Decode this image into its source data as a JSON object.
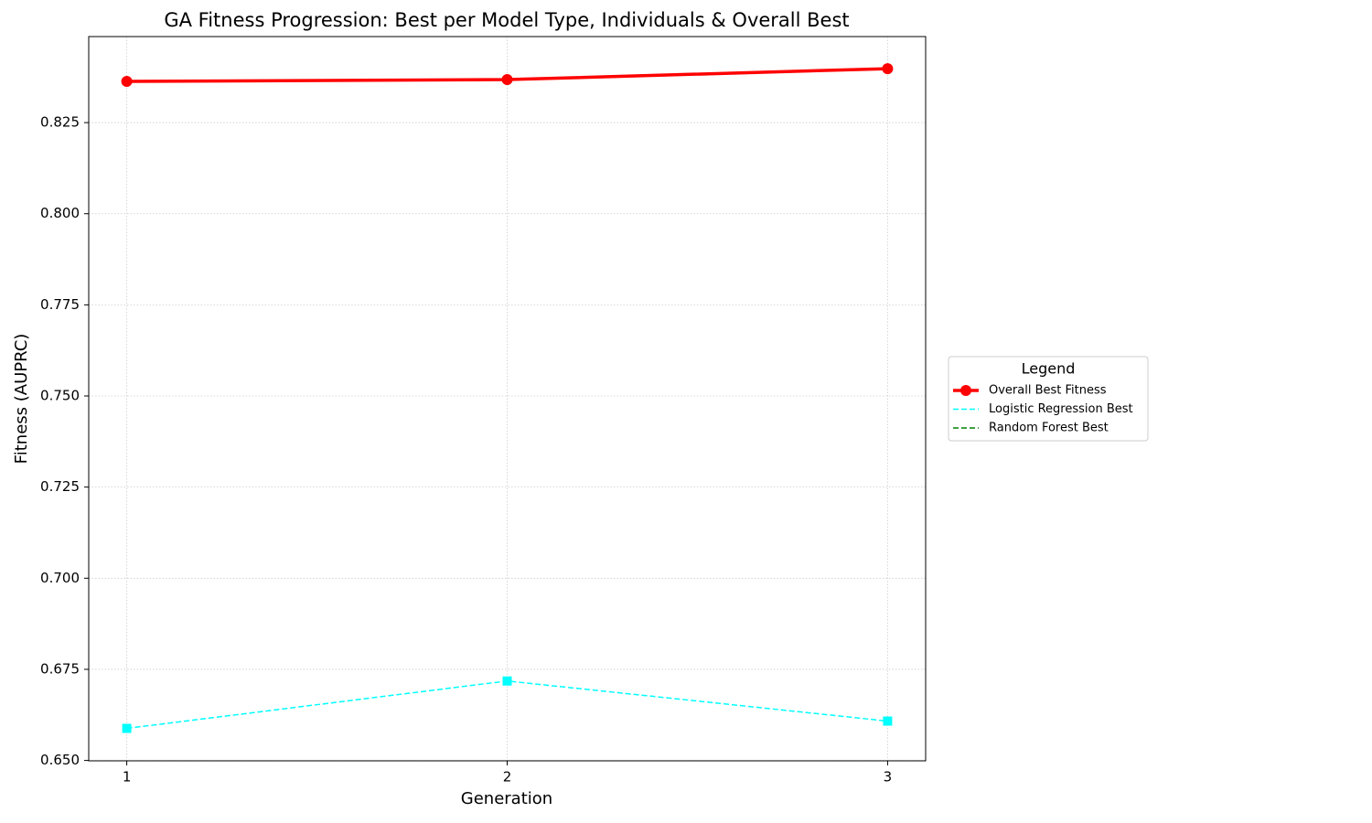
{
  "chart_data": {
    "type": "line",
    "title": "GA Fitness Progression: Best per Model Type, Individuals & Overall Best",
    "xlabel": "Generation",
    "ylabel": "Fitness (AUPRC)",
    "x": [
      1,
      2,
      3
    ],
    "xlim": [
      0.9,
      3.1
    ],
    "xticks": [
      1,
      2,
      3
    ],
    "ylim": [
      0.6499,
      0.8486
    ],
    "yticks": [
      {
        "value": 0.65,
        "label": "0.650"
      },
      {
        "value": 0.675,
        "label": "0.675"
      },
      {
        "value": 0.7,
        "label": "0.700"
      },
      {
        "value": 0.725,
        "label": "0.725"
      },
      {
        "value": 0.75,
        "label": "0.750"
      },
      {
        "value": 0.775,
        "label": "0.775"
      },
      {
        "value": 0.8,
        "label": "0.800"
      },
      {
        "value": 0.825,
        "label": "0.825"
      }
    ],
    "grid": true,
    "legend": {
      "title": "Legend",
      "position": "outside-right"
    },
    "series": [
      {
        "name": "Overall Best Fitness",
        "color": "#ff0000",
        "linestyle": "solid",
        "marker": "circle",
        "linewidth": 3.5,
        "values": [
          0.8363,
          0.8368,
          0.8398
        ]
      },
      {
        "name": "Logistic Regression Best",
        "color": "#00ffff",
        "linestyle": "dashed",
        "marker": "square",
        "linewidth": 1.5,
        "values": [
          0.6588,
          0.6718,
          0.6608
        ]
      },
      {
        "name": "Random Forest Best",
        "color": "#008000",
        "linestyle": "dashed",
        "marker": "square",
        "linewidth": 1.5,
        "values": [
          null,
          null,
          null
        ]
      }
    ]
  }
}
